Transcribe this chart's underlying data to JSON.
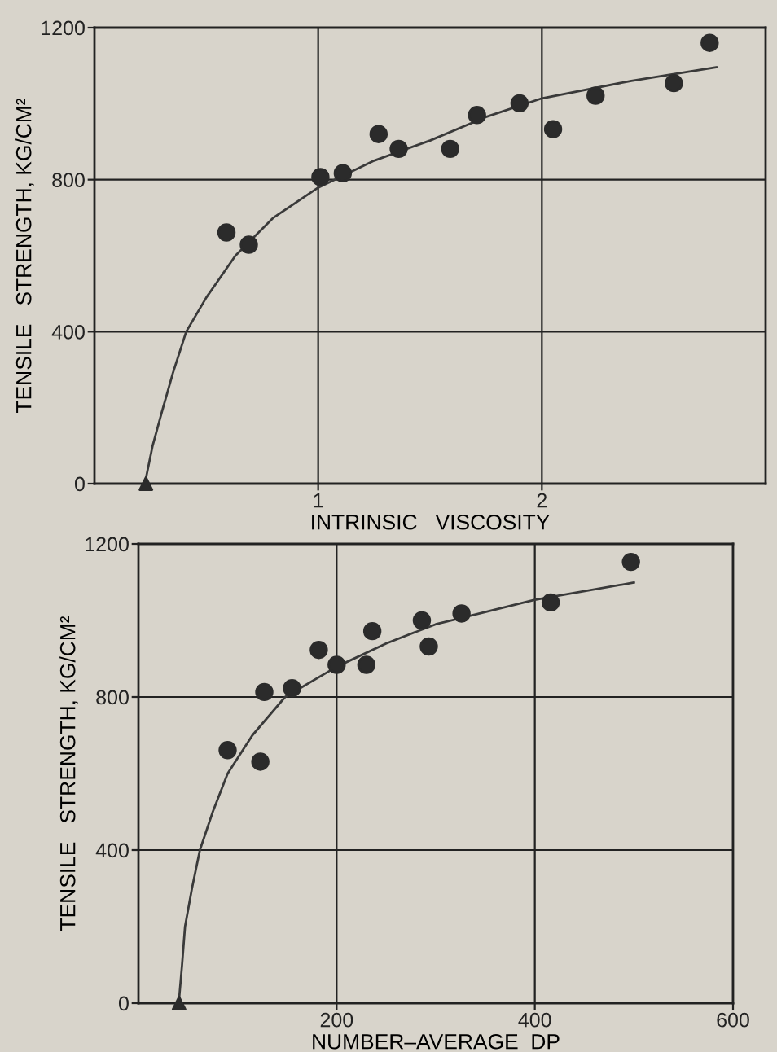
{
  "chart_data": [
    {
      "type": "scatter",
      "xlabel": "INTRINSIC   VISCOSITY",
      "ylabel": "TENSILE   STRENGTH, KG/CM²",
      "xlim": [
        0,
        3
      ],
      "ylim": [
        0,
        1200
      ],
      "xticks": [
        1,
        2
      ],
      "yticks": [
        0,
        400,
        800,
        1200
      ],
      "grid": true,
      "series": [
        {
          "marker": "circle",
          "color": "#2b2b2b",
          "x": [
            0.59,
            0.69,
            1.01,
            1.11,
            1.27,
            1.36,
            1.59,
            1.71,
            1.9,
            2.05,
            2.24,
            2.59,
            2.75
          ],
          "values": [
            661,
            629,
            807,
            817,
            920,
            881,
            881,
            970,
            1001,
            933,
            1021,
            1054,
            1160
          ]
        },
        {
          "marker": "triangle",
          "color": "#2b2b2b",
          "x": [
            0.23
          ],
          "values": [
            0
          ]
        },
        {
          "type": "line",
          "marker": "none",
          "line_style": "solid",
          "color": "#3a3a3a",
          "x": [
            0.23,
            0.26,
            0.3,
            0.35,
            0.41,
            0.5,
            0.63,
            0.8,
            1.0,
            1.25,
            1.5,
            1.75,
            2.0,
            2.4,
            2.78
          ],
          "values": [
            14,
            100,
            186,
            290,
            400,
            490,
            600,
            700,
            779,
            850,
            903,
            965,
            1014,
            1060,
            1096
          ]
        }
      ]
    },
    {
      "type": "scatter",
      "xlabel": "NUMBER–AVERAGE  DP",
      "ylabel": "TENSILE   STRENGTH, KG/CM²",
      "xlim": [
        0,
        600
      ],
      "ylim": [
        0,
        1200
      ],
      "xticks": [
        200,
        400,
        600
      ],
      "yticks": [
        0,
        400,
        800,
        1200
      ],
      "grid": true,
      "series": [
        {
          "marker": "circle",
          "color": "#2b2b2b",
          "x": [
            90,
            123,
            127,
            155,
            182,
            200,
            230,
            236,
            286,
            293,
            326,
            416,
            497
          ],
          "values": [
            661,
            631,
            813,
            823,
            923,
            884,
            884,
            972,
            1000,
            932,
            1018,
            1047,
            1153
          ]
        },
        {
          "marker": "triangle",
          "color": "#2b2b2b",
          "x": [
            41
          ],
          "values": [
            0
          ]
        },
        {
          "type": "line",
          "marker": "none",
          "line_style": "solid",
          "color": "#3a3a3a",
          "x": [
            41,
            44,
            47,
            54,
            62,
            75,
            90,
            115,
            148,
            200,
            250,
            300,
            400,
            500
          ],
          "values": [
            10,
            100,
            200,
            300,
            400,
            500,
            600,
            700,
            800,
            879,
            940,
            990,
            1054,
            1099
          ]
        }
      ]
    }
  ]
}
